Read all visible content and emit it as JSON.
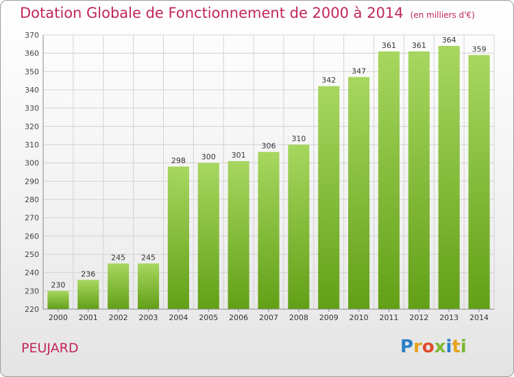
{
  "title": "Dotation Globale de Fonctionnement de 2000 à 2014",
  "subtitle": "(en milliers d'€)",
  "place": "PEUJARD",
  "logo": {
    "text": "Proxiti",
    "colors": [
      "#2a7fc7",
      "#e8a21b",
      "#e04a2c",
      "#7cb832",
      "#2a7fc7",
      "#e8a21b",
      "#7cb832"
    ]
  },
  "colors": {
    "title": "#c0245c",
    "bar_light": "#a7d760",
    "bar_dark": "#62a017",
    "grid": "#d2d2d2"
  },
  "chart_data": {
    "type": "bar",
    "title": "Dotation Globale de Fonctionnement de 2000 à 2014",
    "subtitle": "(en milliers d'€)",
    "categories": [
      "2000",
      "2001",
      "2002",
      "2003",
      "2004",
      "2005",
      "2006",
      "2007",
      "2008",
      "2009",
      "2010",
      "2011",
      "2012",
      "2013",
      "2014"
    ],
    "values": [
      230,
      236,
      245,
      245,
      298,
      300,
      301,
      306,
      310,
      342,
      347,
      361,
      361,
      364,
      359
    ],
    "ylim": [
      220,
      370
    ],
    "yticks": [
      220,
      230,
      240,
      250,
      260,
      270,
      280,
      290,
      300,
      310,
      320,
      330,
      340,
      350,
      360,
      370
    ],
    "grid": true,
    "legend": "none"
  }
}
